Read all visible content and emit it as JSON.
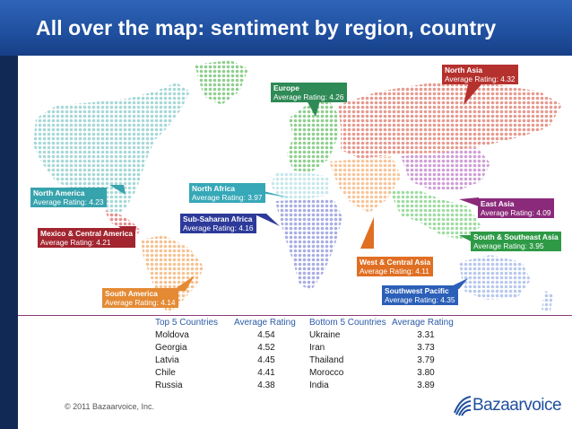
{
  "title": "All over the map: sentiment by region, country",
  "regions": [
    {
      "name": "North Asia",
      "rating": "Average Rating: 4.32",
      "color": "#b5312e"
    },
    {
      "name": "Europe",
      "rating": "Average Rating: 4.26",
      "color": "#2e8a56"
    },
    {
      "name": "North America",
      "rating": "Average Rating: 4.23",
      "color": "#37a3ad"
    },
    {
      "name": "North Africa",
      "rating": "Average Rating: 3.97",
      "color": "#36a8b8"
    },
    {
      "name": "East Asia",
      "rating": "Average Rating: 4.09",
      "color": "#8b2a7a"
    },
    {
      "name": "Sub-Saharan Africa",
      "rating": "Average Rating: 4.16",
      "color": "#2d3a9a"
    },
    {
      "name": "Mexico & Central America",
      "rating": "Average Rating: 4.21",
      "color": "#a2252f"
    },
    {
      "name": "South & Southeast Asia",
      "rating": "Average Rating: 3.95",
      "color": "#2e9a46"
    },
    {
      "name": "West & Central Asia",
      "rating": "Average Rating: 4.11",
      "color": "#e06f23"
    },
    {
      "name": "South America",
      "rating": "Average Rating: 4.14",
      "color": "#e48a35"
    },
    {
      "name": "Southwest Pacific",
      "rating": "Average Rating: 4.35",
      "color": "#2b5fb8"
    }
  ],
  "top5": {
    "header_country": "Top 5 Countries",
    "header_rating": "Average Rating",
    "rows": [
      {
        "country": "Moldova",
        "rating": "4.54"
      },
      {
        "country": "Georgia",
        "rating": "4.52"
      },
      {
        "country": "Latvia",
        "rating": "4.45"
      },
      {
        "country": "Chile",
        "rating": "4.41"
      },
      {
        "country": "Russia",
        "rating": "4.38"
      }
    ]
  },
  "bottom5": {
    "header_country": "Bottom 5 Countries",
    "header_rating": "Average Rating",
    "rows": [
      {
        "country": "Ukraine",
        "rating": "3.31"
      },
      {
        "country": "Iran",
        "rating": "3.73"
      },
      {
        "country": "Thailand",
        "rating": "3.79"
      },
      {
        "country": "Morocco",
        "rating": "3.80"
      },
      {
        "country": "India",
        "rating": "3.89"
      }
    ]
  },
  "copyright": "© 2011 Bazaarvoice, Inc.",
  "logo_text": "Bazaarvoice",
  "colors": {
    "title_bar": "#1f4f9e",
    "europe_dots": "#8fcf8f",
    "north_asia_dots": "#e69a8f",
    "north_america_dots": "#a8d8d8",
    "africa_north_dots": "#c8e8ec",
    "africa_sub_dots": "#a9aee2",
    "east_asia_dots": "#cf9fd6",
    "south_america_dots": "#f5c291",
    "west_central_asia_dots": "#f7c59a",
    "south_asia_dots": "#9fdca2",
    "pacific_dots": "#b8c8ec",
    "mexico_dots": "#e89090"
  }
}
